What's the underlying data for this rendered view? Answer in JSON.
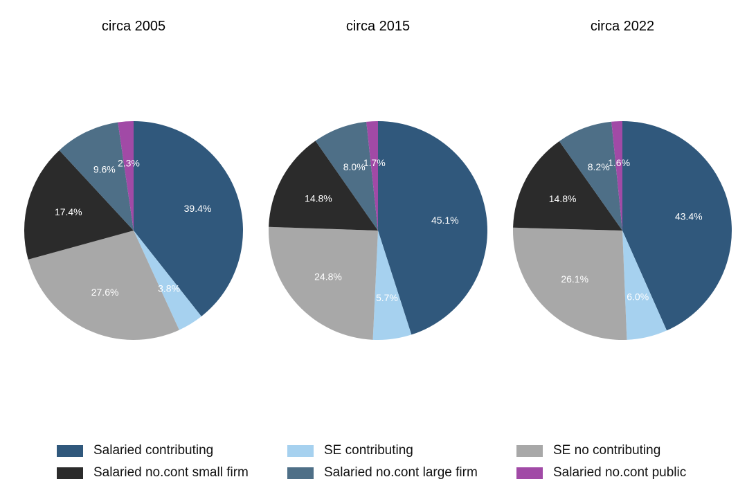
{
  "chart_data": [
    {
      "type": "pie",
      "title": "circa 2005",
      "categories": [
        "Salaried contributing",
        "SE contributing",
        "SE no contributing",
        "Salaried no.cont small firm",
        "Salaried no.cont large firm",
        "Salaried no.cont public"
      ],
      "values": [
        39.4,
        3.8,
        27.6,
        17.4,
        9.6,
        2.3
      ],
      "labels": [
        "39.4%",
        "3.8%",
        "27.6%",
        "17.4%",
        "9.6%",
        "2.3%"
      ]
    },
    {
      "type": "pie",
      "title": "circa 2015",
      "categories": [
        "Salaried contributing",
        "SE contributing",
        "SE no contributing",
        "Salaried no.cont small firm",
        "Salaried no.cont large firm",
        "Salaried no.cont public"
      ],
      "values": [
        45.1,
        5.7,
        24.8,
        14.8,
        8.0,
        1.7
      ],
      "labels": [
        "45.1%",
        "5.7%",
        "24.8%",
        "14.8%",
        "8.0%",
        "1.7%"
      ]
    },
    {
      "type": "pie",
      "title": "circa 2022",
      "categories": [
        "Salaried contributing",
        "SE contributing",
        "SE no contributing",
        "Salaried no.cont small firm",
        "Salaried no.cont large firm",
        "Salaried no.cont public"
      ],
      "values": [
        43.4,
        6.0,
        26.1,
        14.8,
        8.2,
        1.6
      ],
      "labels": [
        "43.4%",
        "6.0%",
        "26.1%",
        "14.8%",
        "8.2%",
        "1.6%"
      ]
    }
  ],
  "legend": {
    "items": [
      {
        "label": "Salaried contributing",
        "color": "#30587c"
      },
      {
        "label": "SE contributing",
        "color": "#a6d1ef"
      },
      {
        "label": "SE no contributing",
        "color": "#a8a8a8"
      },
      {
        "label": "Salaried no.cont small firm",
        "color": "#2b2b2b"
      },
      {
        "label": "Salaried no.cont large firm",
        "color": "#4e6f87"
      },
      {
        "label": "Salaried no.cont public",
        "color": "#a14aa6"
      }
    ]
  },
  "colors": {
    "Salaried contributing": "#30587c",
    "SE contributing": "#a6d1ef",
    "SE no contributing": "#a8a8a8",
    "Salaried no.cont small firm": "#2b2b2b",
    "Salaried no.cont large firm": "#4e6f87",
    "Salaried no.cont public": "#a14aa6"
  }
}
